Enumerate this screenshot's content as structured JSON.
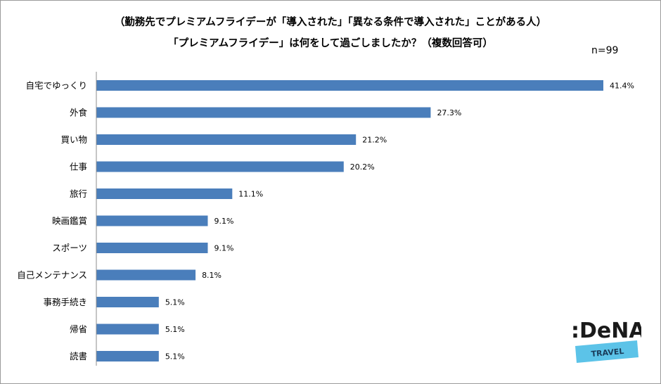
{
  "chart_data": {
    "type": "bar",
    "orientation": "horizontal",
    "title": "（勤務先でプレミアムフライデーが「導入された」「異なる条件で導入された」ことがある人）",
    "subtitle": "「プレミアムフライデー」は何をして過ごしましたか？（複数回答可）",
    "note": "n=99",
    "categories": [
      "自宅でゆっくり",
      "外食",
      "買い物",
      "仕事",
      "旅行",
      "映画鑑賞",
      "スポーツ",
      "自己メンテナンス",
      "事務手続き",
      "帰省",
      "読書"
    ],
    "values": [
      41.4,
      27.3,
      21.2,
      20.2,
      11.1,
      9.1,
      9.1,
      8.1,
      5.1,
      5.1,
      5.1
    ],
    "value_labels": [
      "41.4%",
      "27.3%",
      "21.2%",
      "20.2%",
      "11.1%",
      "9.1%",
      "9.1%",
      "8.1%",
      "5.1%",
      "5.1%",
      "5.1%"
    ],
    "xlim": [
      0,
      41.4
    ],
    "bar_color": "#4a7ebb",
    "grid": false,
    "legend": "none"
  },
  "logo": {
    "brand": ":DeNA",
    "sub": "TRAVEL",
    "colors": {
      "brand": "#1a1a1a",
      "band": "#5cc3e8"
    }
  }
}
